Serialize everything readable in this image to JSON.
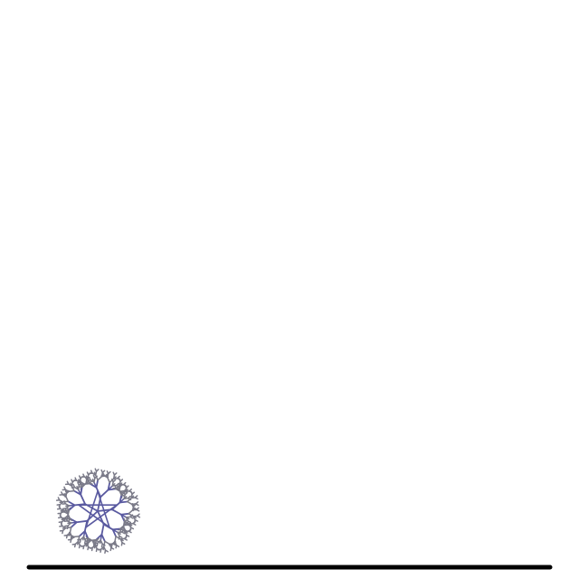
{
  "scene": {
    "background_color": "#ffffff",
    "ground": {
      "color": "#000000"
    },
    "creature": {
      "outer_color": "#7a7a88",
      "core_color": "#5a5aa0",
      "arms": 5
    }
  }
}
